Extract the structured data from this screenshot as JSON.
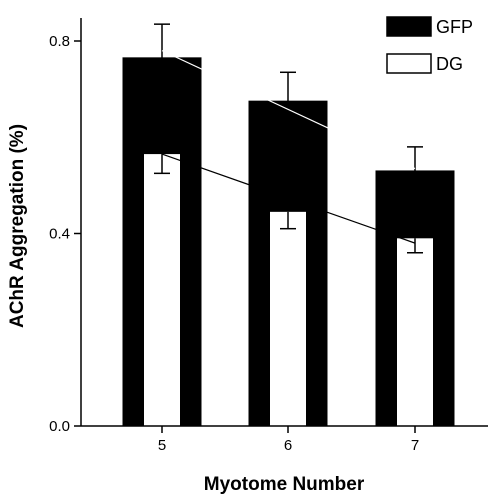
{
  "chart_data": {
    "type": "bar",
    "title": "",
    "xlabel": "Myotome Number",
    "ylabel": "AChR Aggregation (%)",
    "categories": [
      "5",
      "6",
      "7"
    ],
    "ylim": [
      0,
      0.84
    ],
    "yticks": [
      0.0,
      0.4,
      0.8
    ],
    "ytick_labels": [
      "0.0",
      "0.4",
      "0.8"
    ],
    "grid": false,
    "legend_position": "top-right",
    "series": [
      {
        "name": "GFP",
        "values": [
          0.765,
          0.675,
          0.53
        ],
        "errors": [
          0.07,
          0.06,
          0.05
        ],
        "color": "#000000"
      },
      {
        "name": "DG",
        "values": [
          0.565,
          0.445,
          0.39
        ],
        "errors": [
          0.04,
          0.035,
          0.03
        ],
        "color": "#ffffff"
      }
    ],
    "trend_lines": [
      {
        "series": "GFP",
        "start": 0.78,
        "end": 0.535
      },
      {
        "series": "DG",
        "start": 0.565,
        "end": 0.38
      }
    ]
  }
}
